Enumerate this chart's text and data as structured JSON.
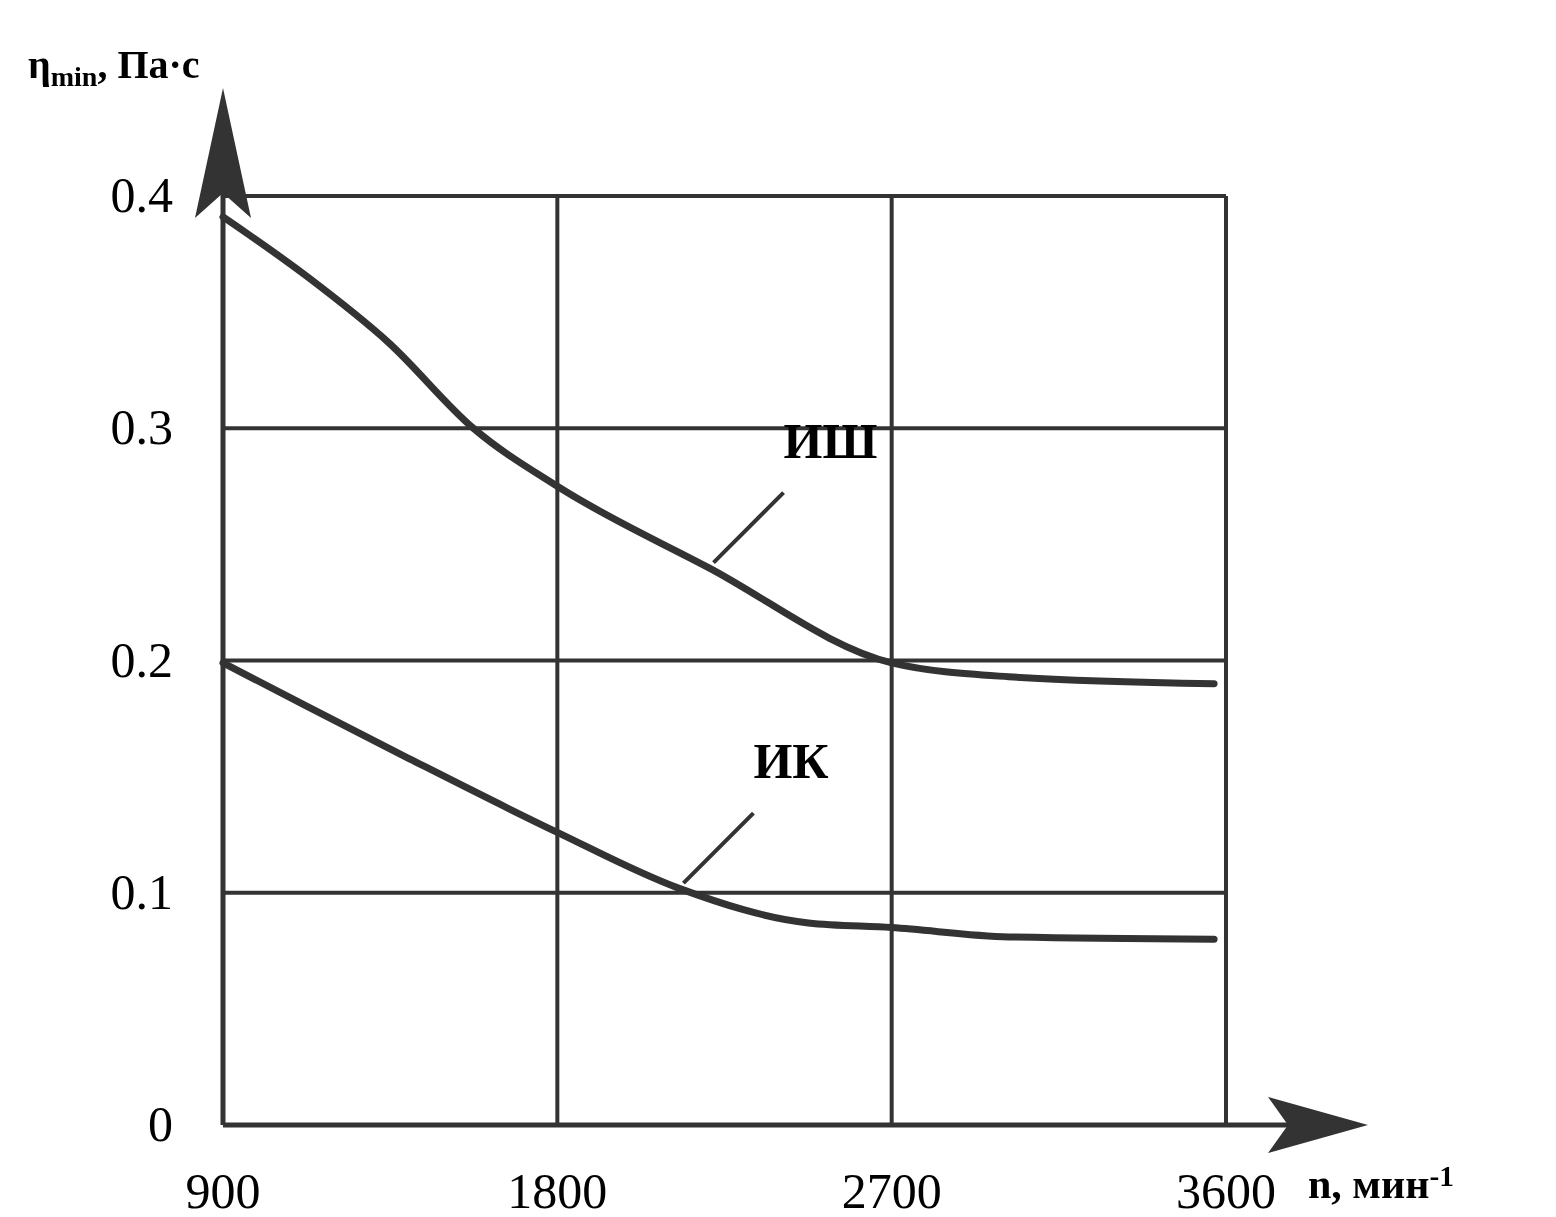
{
  "chart_data": {
    "type": "line",
    "xlabel": "n, мин$^{-1}$",
    "ylabel": "η$_{min}$, Па·с",
    "xlim": [
      900,
      3600
    ],
    "ylim": [
      0,
      0.4
    ],
    "xticks": [
      900,
      1800,
      2700,
      3600
    ],
    "yticks": [
      0,
      0.1,
      0.2,
      0.3,
      0.4
    ],
    "grid": true,
    "marker": "none",
    "line_style": "solid",
    "series": [
      {
        "x": [
          900,
          1129,
          1345,
          1574,
          1800,
          2207,
          2700,
          3015,
          3568
        ],
        "values": [
          0.391,
          0.365,
          0.337,
          0.3,
          0.275,
          0.24,
          0.199,
          0.193,
          0.19
        ],
        "color": "#333333"
      },
      {
        "x": [
          900,
          1129,
          1398,
          1800,
          2126,
          2476,
          2700,
          3015,
          3568
        ],
        "values": [
          0.199,
          0.18,
          0.158,
          0.126,
          0.102,
          0.087,
          0.085,
          0.081,
          0.08
        ],
        "color": "#333333"
      }
    ],
    "annotations": [
      {
        "text": "ИШ",
        "x": 2207,
        "y": 0.24
      },
      {
        "text": "ИК",
        "x": 2126,
        "y": 0.102
      }
    ]
  }
}
